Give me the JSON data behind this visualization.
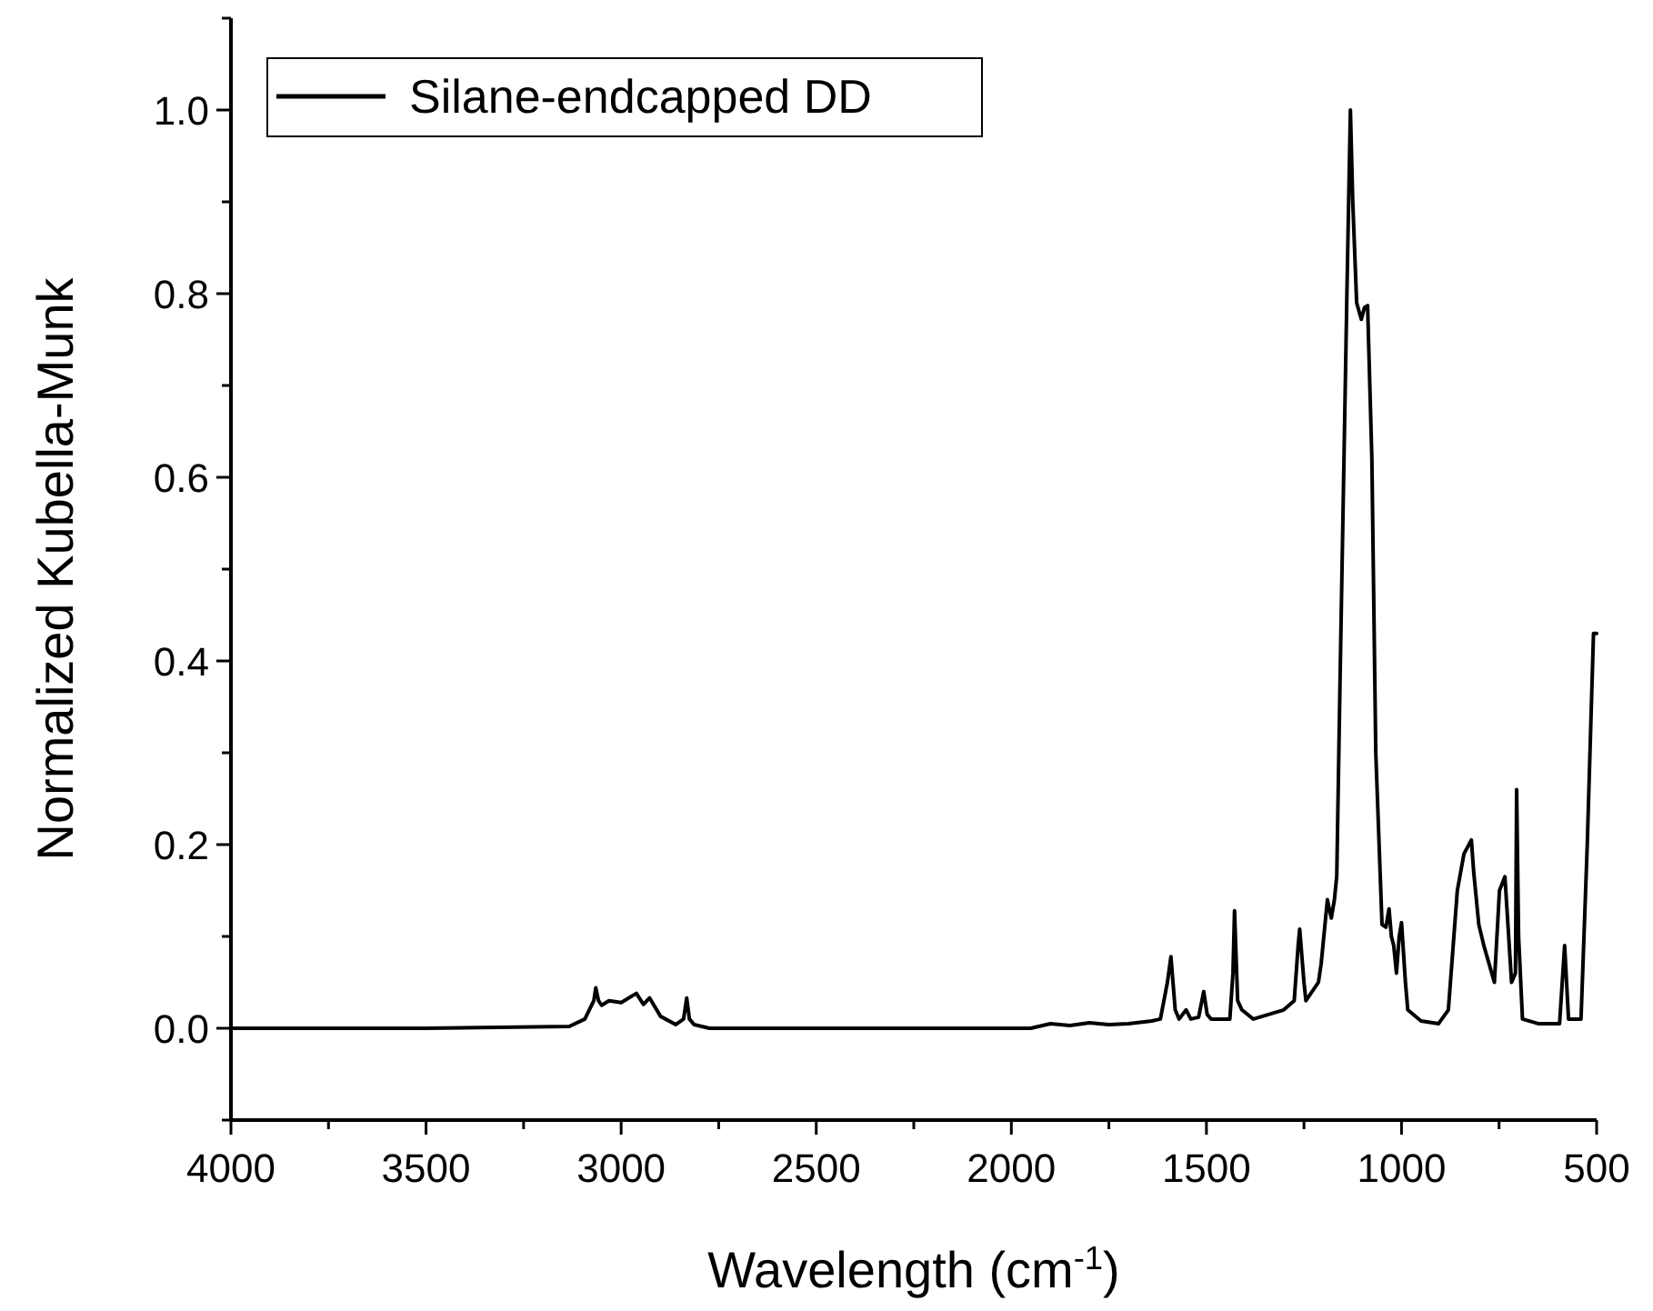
{
  "chart_data": {
    "type": "line",
    "xlabel": "Wavelength (cm$^{-1}$)",
    "ylabel": "Normalized Kubella-Munk",
    "xlim": [
      4000,
      500
    ],
    "ylim": [
      -0.1,
      1.1
    ],
    "xticks": [
      4000,
      {
        "value": 3750,
        "label": null
      },
      3500,
      {
        "value": 3250,
        "label": null
      },
      3000,
      {
        "value": 2750,
        "label": null
      },
      2500,
      {
        "value": 2250,
        "label": null
      },
      2000,
      {
        "value": 1750,
        "label": null
      },
      1500,
      {
        "value": 1250,
        "label": null
      },
      1000,
      {
        "value": 750,
        "label": null
      },
      500
    ],
    "yticks": [
      {
        "value": -0.1,
        "label": null
      },
      {
        "value": 0,
        "label": "0.0"
      },
      {
        "value": 0.1,
        "label": null
      },
      {
        "value": 0.2,
        "label": "0.2"
      },
      {
        "value": 0.3,
        "label": null
      },
      {
        "value": 0.4,
        "label": "0.4"
      },
      {
        "value": 0.5,
        "label": null
      },
      {
        "value": 0.6,
        "label": "0.6"
      },
      {
        "value": 0.7,
        "label": null
      },
      {
        "value": 0.8,
        "label": "0.8"
      },
      {
        "value": 0.9,
        "label": null
      },
      {
        "value": 1.0,
        "label": "1.0"
      },
      {
        "value": 1.1,
        "label": null
      }
    ],
    "grid": false,
    "legend": "top left",
    "marker": "none",
    "line_style": "solid",
    "series": [
      {
        "name": "Silane-endcapped DD",
        "color": "#000000",
        "x": [
          4000,
          3500,
          3133,
          3093,
          3070,
          3065,
          3058,
          3050,
          3031,
          3000,
          2961,
          2943,
          2927,
          2899,
          2860,
          2840,
          2832,
          2825,
          2813,
          2774,
          2400,
          1950,
          1900,
          1850,
          1800,
          1750,
          1700,
          1640,
          1618,
          1600,
          1591,
          1580,
          1570,
          1552,
          1540,
          1520,
          1507,
          1498,
          1488,
          1440,
          1432,
          1428,
          1420,
          1409,
          1380,
          1302,
          1275,
          1265,
          1261,
          1250,
          1245,
          1213,
          1206,
          1190,
          1180,
          1172,
          1166,
          1158,
          1140,
          1131,
          1125,
          1115,
          1103,
          1095,
          1087,
          1076,
          1066,
          1050,
          1040,
          1032,
          1026,
          1020,
          1013,
          1006,
          1000,
          990,
          984,
          950,
          905,
          880,
          857,
          840,
          821,
          815,
          802,
          789,
          762,
          749,
          735,
          718,
          708,
          705,
          700,
          690,
          650,
          595,
          582,
          572,
          540,
          524,
          508,
          500
        ],
        "values": [
          0,
          0,
          0.002,
          0.01,
          0.03,
          0.044,
          0.03,
          0.025,
          0.03,
          0.028,
          0.038,
          0.026,
          0.033,
          0.013,
          0.004,
          0.01,
          0.033,
          0.01,
          0.004,
          0,
          0,
          0,
          0.005,
          0.003,
          0.006,
          0.004,
          0.005,
          0.008,
          0.01,
          0.05,
          0.078,
          0.02,
          0.01,
          0.02,
          0.01,
          0.012,
          0.04,
          0.015,
          0.01,
          0.01,
          0.06,
          0.128,
          0.03,
          0.02,
          0.01,
          0.02,
          0.03,
          0.09,
          0.108,
          0.05,
          0.03,
          0.05,
          0.07,
          0.14,
          0.12,
          0.14,
          0.166,
          0.368,
          0.8,
          1.0,
          0.9,
          0.79,
          0.772,
          0.785,
          0.787,
          0.62,
          0.3,
          0.113,
          0.11,
          0.13,
          0.1,
          0.09,
          0.06,
          0.1,
          0.115,
          0.05,
          0.02,
          0.008,
          0.005,
          0.02,
          0.15,
          0.19,
          0.205,
          0.17,
          0.113,
          0.09,
          0.05,
          0.15,
          0.165,
          0.05,
          0.06,
          0.26,
          0.1,
          0.01,
          0.005,
          0.005,
          0.09,
          0.01,
          0.01,
          0.2,
          0.43,
          0.43
        ]
      }
    ]
  }
}
